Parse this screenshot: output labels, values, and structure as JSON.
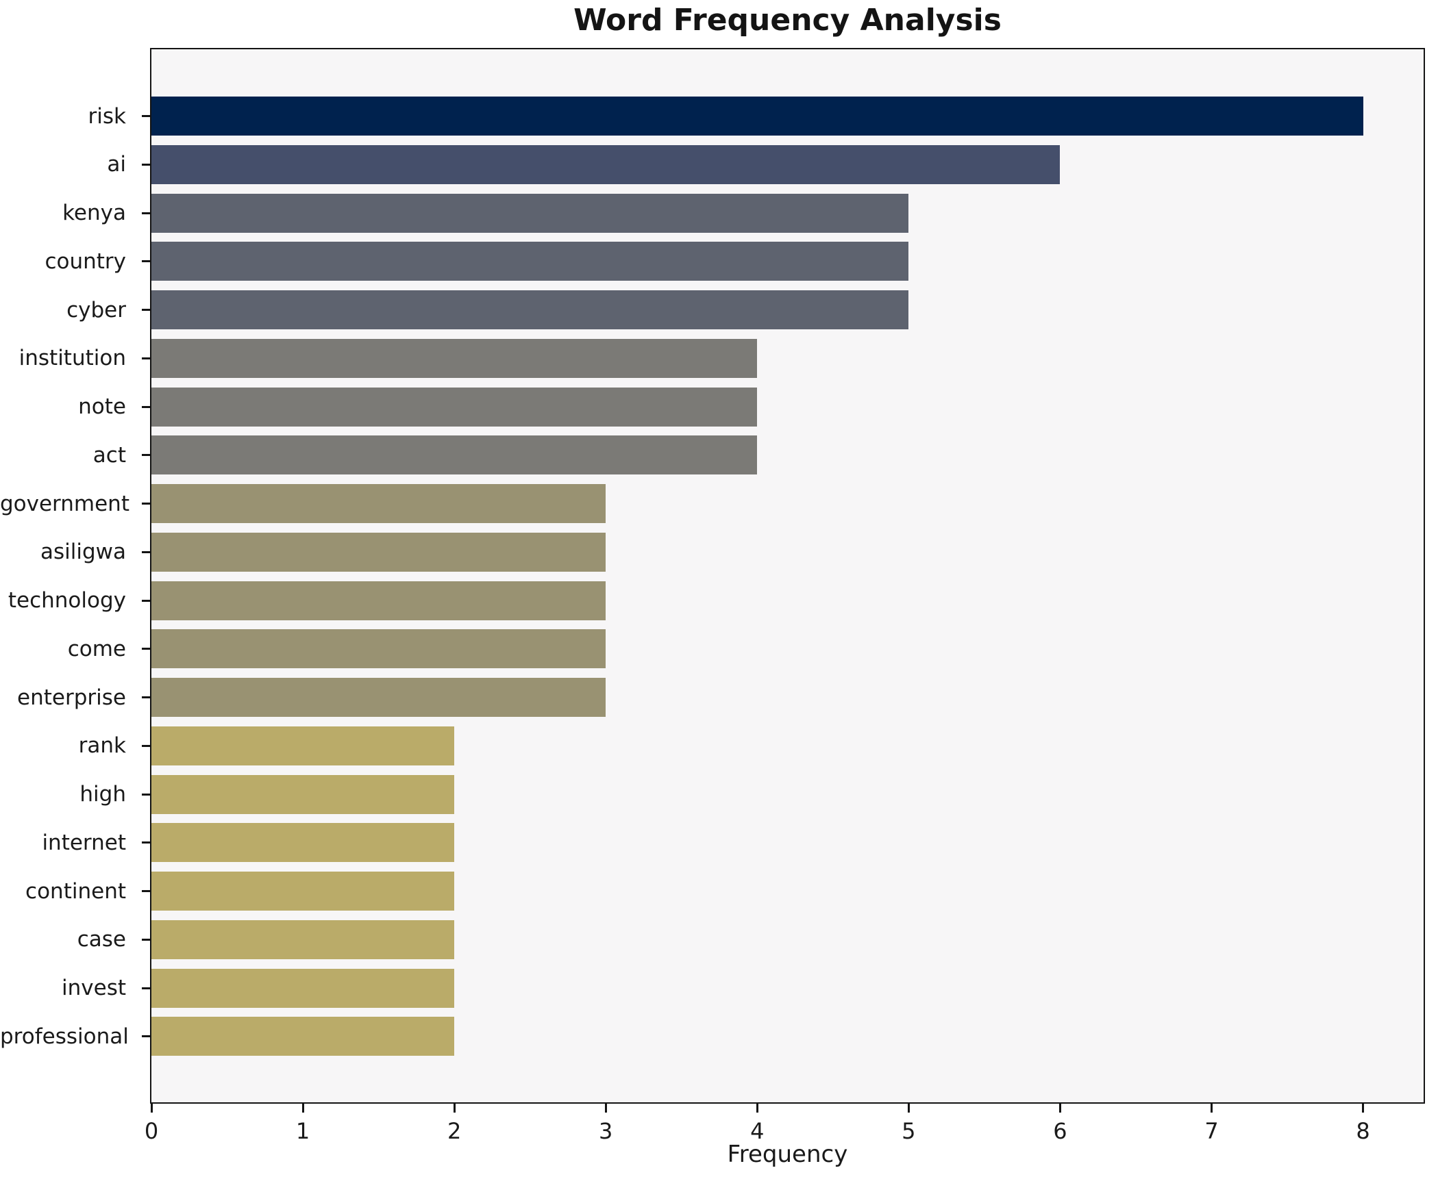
{
  "chart_data": {
    "type": "bar",
    "orientation": "horizontal",
    "title": "Word Frequency Analysis",
    "xlabel": "Frequency",
    "ylabel": "",
    "categories": [
      "risk",
      "ai",
      "kenya",
      "country",
      "cyber",
      "institution",
      "note",
      "act",
      "government",
      "asiligwa",
      "technology",
      "come",
      "enterprise",
      "rank",
      "high",
      "internet",
      "continent",
      "case",
      "invest",
      "professional"
    ],
    "values": [
      8,
      6,
      5,
      5,
      5,
      4,
      4,
      4,
      3,
      3,
      3,
      3,
      3,
      2,
      2,
      2,
      2,
      2,
      2,
      2
    ],
    "bar_colors": [
      "#00224e",
      "#454f6b",
      "#5e636f",
      "#5e636f",
      "#5e636f",
      "#7b7a76",
      "#7b7a76",
      "#7b7a76",
      "#999272",
      "#999272",
      "#999272",
      "#999272",
      "#999272",
      "#baab69",
      "#baab69",
      "#baab69",
      "#baab69",
      "#baab69",
      "#baab69",
      "#baab69"
    ],
    "xlim": [
      0,
      8.4
    ],
    "xticks": [
      0,
      1,
      2,
      3,
      4,
      5,
      6,
      7,
      8
    ],
    "grid": false,
    "legend": "none",
    "plot_background": "#f7f6f7",
    "figure_background": "#ffffff",
    "axis_color": "#141414"
  }
}
